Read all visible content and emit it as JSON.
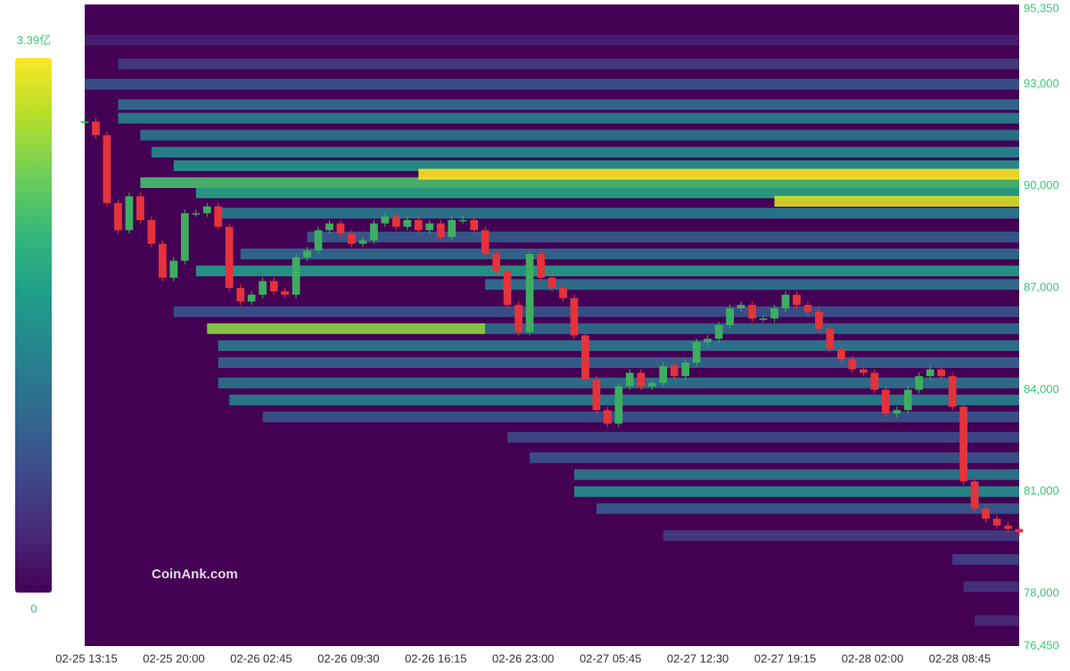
{
  "chart_data": {
    "type": "heatmap",
    "xlabels": [
      "02-25 13:15",
      "02-25 20:00",
      "02-26 02:45",
      "02-26 09:30",
      "02-26 16:15",
      "02-26 23:00",
      "02-27 05:45",
      "02-27 12:30",
      "02-27 19:15",
      "02-28 02:00",
      "02-28 08:45"
    ],
    "price": {
      "values": [
        91900,
        91500,
        89500,
        88700,
        89700,
        89000,
        88300,
        87300,
        87800,
        89200,
        89200,
        89400,
        88800,
        87000,
        86600,
        86800,
        87200,
        86900,
        86800,
        87900,
        88100,
        88700,
        88900,
        88600,
        88300,
        88400,
        88900,
        89100,
        88800,
        89000,
        88700,
        88900,
        88500,
        89000,
        89000,
        88700,
        88000,
        87500,
        86500,
        85700,
        88000,
        87300,
        87000,
        86700,
        85600,
        84300,
        83400,
        83000,
        84100,
        84500,
        84100,
        84200,
        84700,
        84400,
        84800,
        85400,
        85500,
        85900,
        86400,
        86500,
        86100,
        86100,
        86400,
        86800,
        86500,
        86300,
        85800,
        85200,
        84900,
        84600,
        84500,
        84000,
        83300,
        83400,
        84000,
        84400,
        84600,
        84400,
        83500,
        81300,
        80500,
        80200,
        80000,
        79900,
        79800
      ]
    },
    "up_color": "#3dae5f",
    "down_color": "#e5333b",
    "bands": [
      {
        "price": 94300,
        "start": 0,
        "end": null,
        "intensity": 0.3
      },
      {
        "price": 93600,
        "start": 3,
        "end": null,
        "intensity": 0.6
      },
      {
        "price": 93000,
        "start": 0,
        "end": null,
        "intensity": 0.9
      },
      {
        "price": 92400,
        "start": 3,
        "end": null,
        "intensity": 1.2
      },
      {
        "price": 92000,
        "start": 3,
        "end": null,
        "intensity": 1.5
      },
      {
        "price": 91500,
        "start": 5,
        "end": null,
        "intensity": 1.3
      },
      {
        "price": 91000,
        "start": 6,
        "end": null,
        "intensity": 1.6
      },
      {
        "price": 90600,
        "start": 8,
        "end": null,
        "intensity": 1.8
      },
      {
        "price": 90100,
        "start": 5,
        "end": null,
        "intensity": 2.4
      },
      {
        "price": 89800,
        "start": 10,
        "end": null,
        "intensity": 2.0
      },
      {
        "price": 90350,
        "start": 30,
        "end": null,
        "intensity": 3.39
      },
      {
        "price": 89550,
        "start": 62,
        "end": null,
        "intensity": 3.2
      },
      {
        "price": 89200,
        "start": 12,
        "end": null,
        "intensity": 1.4
      },
      {
        "price": 88500,
        "start": 20,
        "end": null,
        "intensity": 1.0
      },
      {
        "price": 88000,
        "start": 14,
        "end": null,
        "intensity": 1.2
      },
      {
        "price": 87500,
        "start": 10,
        "end": null,
        "intensity": 1.9
      },
      {
        "price": 87100,
        "start": 36,
        "end": null,
        "intensity": 1.3
      },
      {
        "price": 86300,
        "start": 8,
        "end": null,
        "intensity": 0.9
      },
      {
        "price": 85800,
        "start": 36,
        "end": null,
        "intensity": 1.2
      },
      {
        "price": 85800,
        "start": 11,
        "end": 36,
        "intensity": 2.8
      },
      {
        "price": 85300,
        "start": 12,
        "end": null,
        "intensity": 1.4
      },
      {
        "price": 84800,
        "start": 12,
        "end": null,
        "intensity": 1.1
      },
      {
        "price": 84200,
        "start": 12,
        "end": null,
        "intensity": 1.3
      },
      {
        "price": 83700,
        "start": 13,
        "end": null,
        "intensity": 1.5
      },
      {
        "price": 83200,
        "start": 16,
        "end": null,
        "intensity": 0.9
      },
      {
        "price": 82600,
        "start": 38,
        "end": null,
        "intensity": 0.8
      },
      {
        "price": 82000,
        "start": 40,
        "end": null,
        "intensity": 0.9
      },
      {
        "price": 81500,
        "start": 44,
        "end": null,
        "intensity": 1.4
      },
      {
        "price": 81000,
        "start": 44,
        "end": null,
        "intensity": 1.7
      },
      {
        "price": 80500,
        "start": 46,
        "end": null,
        "intensity": 1.0
      },
      {
        "price": 79700,
        "start": 52,
        "end": null,
        "intensity": 0.6
      },
      {
        "price": 79000,
        "start": 78,
        "end": null,
        "intensity": 0.7
      },
      {
        "price": 78200,
        "start": 79,
        "end": null,
        "intensity": 0.5
      },
      {
        "price": 77200,
        "start": 80,
        "end": null,
        "intensity": 0.4
      }
    ],
    "ylim": [
      76450,
      95350
    ],
    "yticks": [
      {
        "value": 76450,
        "label": "76,450"
      },
      {
        "value": 78000,
        "label": "78,000"
      },
      {
        "value": 81000,
        "label": "81,000"
      },
      {
        "value": 84000,
        "label": "84,000"
      },
      {
        "value": 87000,
        "label": "87,000"
      },
      {
        "value": 90000,
        "label": "90,000"
      },
      {
        "value": 93000,
        "label": "93,000"
      },
      {
        "value": 95350,
        "label": "95,350"
      }
    ],
    "colorbar": {
      "ticks": [
        {
          "value": 3.39,
          "label": "3.39亿"
        },
        {
          "value": 0,
          "label": "0"
        }
      ]
    },
    "watermark": "CoinAnk.com"
  }
}
